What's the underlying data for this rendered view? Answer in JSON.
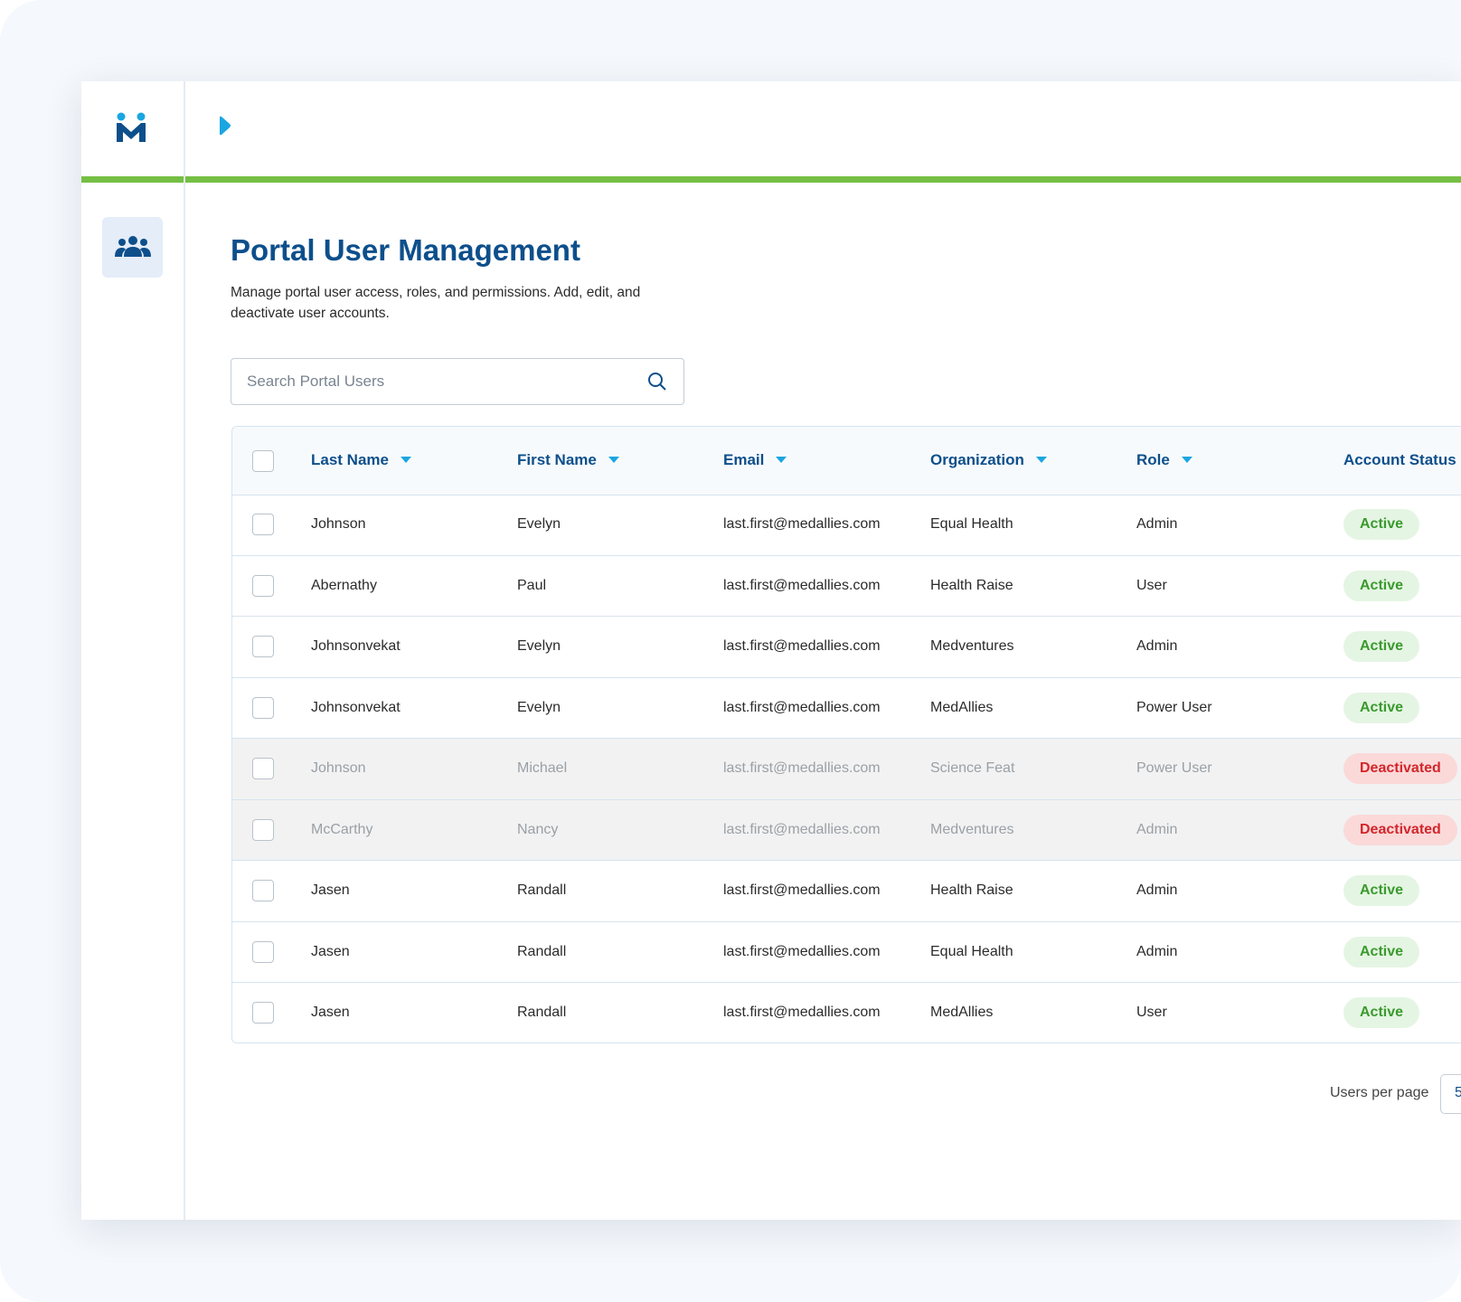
{
  "page": {
    "title": "Portal User Management",
    "description": "Manage portal user access, roles, and permissions. Add, edit, and deactivate user accounts.",
    "search_placeholder": "Search Portal Users",
    "table": {
      "columns": [
        "Last Name",
        "First Name",
        "Email",
        "Organization",
        "Role",
        "Account Status"
      ],
      "rows": [
        {
          "cells": [
            "Johnson",
            "Evelyn",
            "last.first@medallies.com",
            "Equal Health",
            "Admin",
            "Active"
          ],
          "inactive": false
        },
        {
          "cells": [
            "Abernathy",
            "Paul",
            "last.first@medallies.com",
            "Health Raise",
            "User",
            "Active"
          ],
          "inactive": false
        },
        {
          "cells": [
            "Johnsonvekat",
            "Evelyn",
            "last.first@medallies.com",
            "Medventures",
            "Admin",
            "Active"
          ],
          "inactive": false
        },
        {
          "cells": [
            "Johnsonvekat",
            "Evelyn",
            "last.first@medallies.com",
            "MedAllies",
            "Power User",
            "Active"
          ],
          "inactive": false
        },
        {
          "cells": [
            "Johnson",
            "Michael",
            "last.first@medallies.com",
            "Science Feat",
            "Power User",
            "Deactivated"
          ],
          "inactive": true
        },
        {
          "cells": [
            "McCarthy",
            "Nancy",
            "last.first@medallies.com",
            "Medventures",
            "Admin",
            "Deactivated"
          ],
          "inactive": true
        },
        {
          "cells": [
            "Jasen",
            "Randall",
            "last.first@medallies.com",
            "Health Raise",
            "Admin",
            "Active"
          ],
          "inactive": false
        },
        {
          "cells": [
            "Jasen",
            "Randall",
            "last.first@medallies.com",
            "Equal Health",
            "Admin",
            "Active"
          ],
          "inactive": false
        },
        {
          "cells": [
            "Jasen",
            "Randall",
            "last.first@medallies.com",
            "MedAllies",
            "User",
            "Active"
          ],
          "inactive": false
        }
      ]
    },
    "pagination": {
      "label": "Users per page",
      "per_page": "5"
    }
  }
}
